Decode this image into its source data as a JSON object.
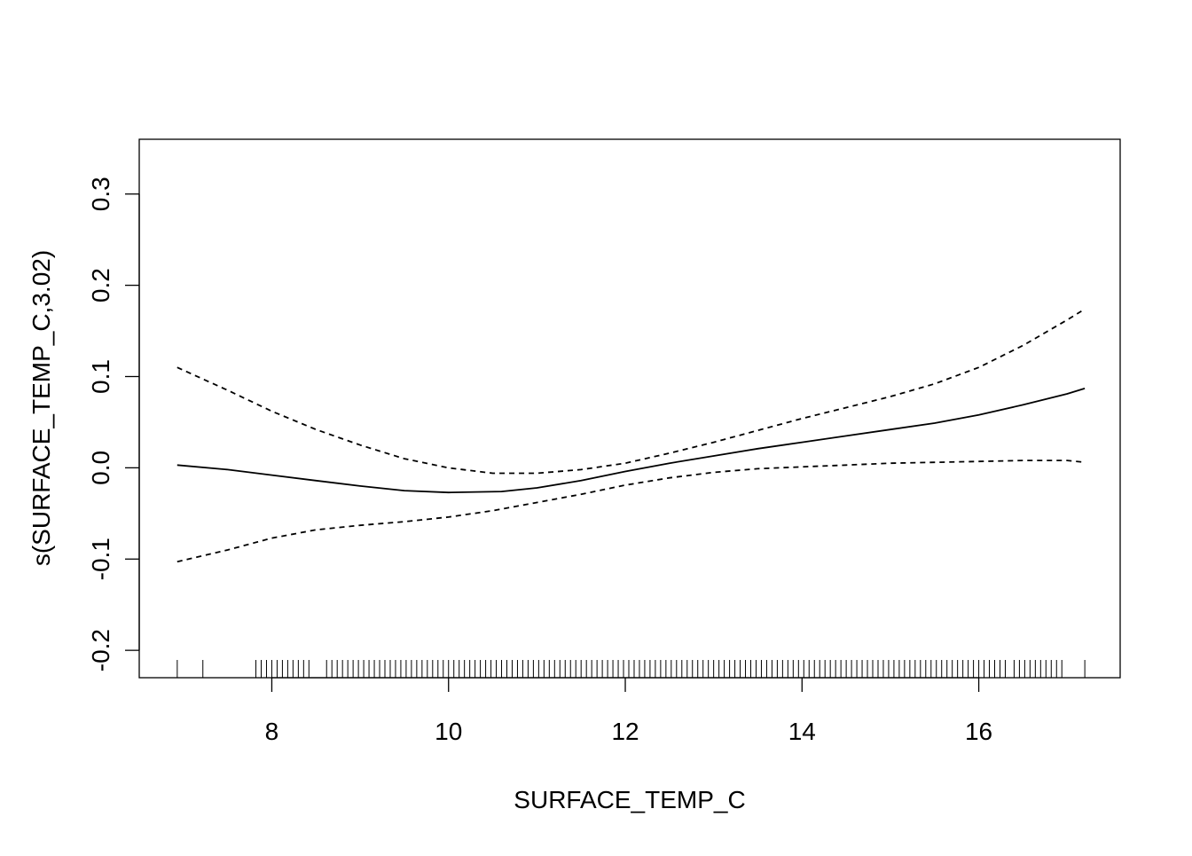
{
  "chart_data": {
    "type": "line",
    "title": "",
    "xlabel": "SURFACE_TEMP_C",
    "ylabel": "s(SURFACE_TEMP_C,3.02)",
    "xlim": [
      6.5,
      17.6
    ],
    "ylim": [
      -0.23,
      0.36
    ],
    "x_ticks": [
      8,
      10,
      12,
      14,
      16
    ],
    "y_ticks": [
      -0.2,
      -0.1,
      0.0,
      0.1,
      0.2,
      0.3
    ],
    "x_tick_labels": [
      "8",
      "10",
      "12",
      "14",
      "16"
    ],
    "y_tick_labels": [
      "-0.2",
      "-0.1",
      "0.0",
      "0.1",
      "0.2",
      "0.3"
    ],
    "grid": false,
    "legend": "none",
    "series": [
      {
        "role": "smooth-estimate",
        "style": "solid",
        "x": [
          6.93,
          7.5,
          8.0,
          8.5,
          9.0,
          9.5,
          10.0,
          10.6,
          11.0,
          11.5,
          12.0,
          12.5,
          13.0,
          13.5,
          14.0,
          14.5,
          15.0,
          15.5,
          16.0,
          16.5,
          17.0,
          17.2
        ],
        "y": [
          0.003,
          -0.002,
          -0.008,
          -0.014,
          -0.02,
          -0.025,
          -0.027,
          -0.026,
          -0.022,
          -0.014,
          -0.004,
          0.005,
          0.013,
          0.021,
          0.028,
          0.035,
          0.042,
          0.049,
          0.058,
          0.069,
          0.081,
          0.087
        ]
      },
      {
        "role": "upper-confidence-band",
        "style": "dashed",
        "x": [
          6.93,
          7.5,
          8.0,
          8.5,
          9.0,
          9.5,
          10.0,
          10.5,
          11.0,
          11.5,
          12.0,
          12.5,
          13.0,
          13.5,
          14.0,
          14.5,
          15.0,
          15.5,
          16.0,
          16.5,
          17.0,
          17.2
        ],
        "y": [
          0.11,
          0.085,
          0.062,
          0.042,
          0.025,
          0.01,
          0.0,
          -0.006,
          -0.006,
          -0.002,
          0.005,
          0.016,
          0.028,
          0.041,
          0.054,
          0.066,
          0.078,
          0.092,
          0.11,
          0.134,
          0.162,
          0.174
        ]
      },
      {
        "role": "lower-confidence-band",
        "style": "dashed",
        "x": [
          6.93,
          7.5,
          8.0,
          8.5,
          9.0,
          9.5,
          10.0,
          10.5,
          11.0,
          11.5,
          12.0,
          12.5,
          13.0,
          13.5,
          14.0,
          14.5,
          15.0,
          15.5,
          16.0,
          16.5,
          17.0,
          17.2
        ],
        "y": [
          -0.103,
          -0.09,
          -0.077,
          -0.068,
          -0.063,
          -0.059,
          -0.054,
          -0.047,
          -0.038,
          -0.029,
          -0.019,
          -0.011,
          -0.005,
          -0.001,
          0.001,
          0.003,
          0.005,
          0.006,
          0.007,
          0.008,
          0.008,
          0.006
        ]
      }
    ],
    "rug": [
      6.93,
      7.22,
      7.82,
      7.88,
      7.94,
      8.0,
      8.06,
      8.12,
      8.18,
      8.24,
      8.3,
      8.36,
      8.42,
      8.62,
      8.68,
      8.74,
      8.8,
      8.86,
      8.92,
      8.98,
      9.04,
      9.1,
      9.16,
      9.22,
      9.28,
      9.34,
      9.4,
      9.46,
      9.52,
      9.58,
      9.64,
      9.7,
      9.76,
      9.82,
      9.88,
      9.94,
      10.0,
      10.06,
      10.12,
      10.18,
      10.24,
      10.3,
      10.36,
      10.42,
      10.48,
      10.54,
      10.6,
      10.66,
      10.72,
      10.78,
      10.84,
      10.9,
      10.96,
      11.02,
      11.08,
      11.14,
      11.2,
      11.26,
      11.32,
      11.38,
      11.44,
      11.5,
      11.56,
      11.62,
      11.68,
      11.74,
      11.8,
      11.86,
      11.92,
      11.98,
      12.04,
      12.1,
      12.16,
      12.22,
      12.28,
      12.34,
      12.4,
      12.46,
      12.52,
      12.58,
      12.64,
      12.7,
      12.76,
      12.82,
      12.88,
      12.94,
      13.0,
      13.06,
      13.12,
      13.18,
      13.24,
      13.3,
      13.36,
      13.42,
      13.48,
      13.54,
      13.6,
      13.66,
      13.72,
      13.78,
      13.84,
      13.9,
      13.96,
      14.02,
      14.08,
      14.14,
      14.2,
      14.26,
      14.32,
      14.38,
      14.44,
      14.5,
      14.56,
      14.62,
      14.68,
      14.74,
      14.8,
      14.86,
      14.92,
      14.98,
      15.04,
      15.1,
      15.16,
      15.22,
      15.28,
      15.34,
      15.4,
      15.46,
      15.52,
      15.58,
      15.64,
      15.7,
      15.76,
      15.82,
      15.88,
      15.94,
      16.0,
      16.06,
      16.12,
      16.18,
      16.24,
      16.3,
      16.4,
      16.46,
      16.52,
      16.58,
      16.64,
      16.7,
      16.76,
      16.82,
      16.88,
      16.94,
      17.2
    ]
  }
}
